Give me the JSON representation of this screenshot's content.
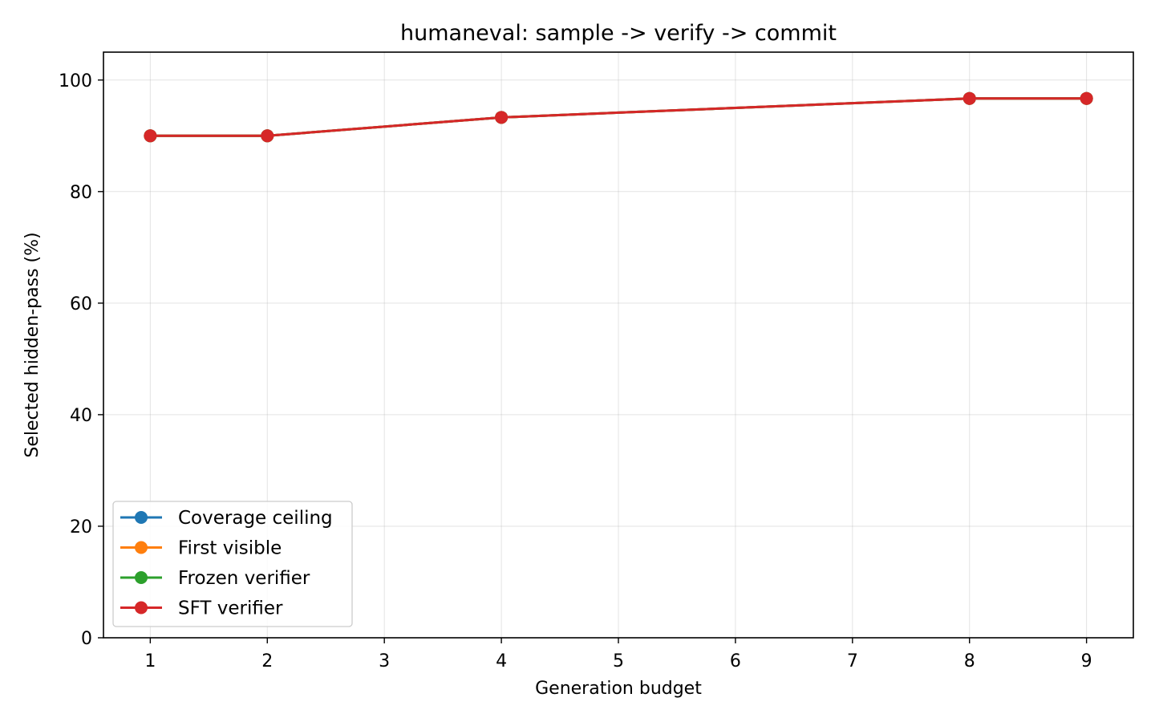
{
  "chart_data": {
    "type": "line",
    "title": "humaneval: sample -> verify -> commit",
    "xlabel": "Generation budget",
    "ylabel": "Selected hidden-pass (%)",
    "x_ticks": [
      1,
      2,
      3,
      4,
      5,
      6,
      7,
      8,
      9
    ],
    "y_ticks": [
      0,
      20,
      40,
      60,
      80,
      100
    ],
    "xlim": [
      0.6,
      9.4
    ],
    "ylim": [
      0,
      105
    ],
    "grid": true,
    "legend_position": "lower-left",
    "x": [
      1,
      2,
      4,
      8,
      9
    ],
    "series": [
      {
        "name": "Coverage ceiling",
        "color": "#1f77b4",
        "values": [
          90.0,
          90.0,
          93.3,
          96.7,
          96.7
        ]
      },
      {
        "name": "First visible",
        "color": "#ff7f0e",
        "values": [
          90.0,
          90.0,
          93.3,
          96.7,
          96.7
        ]
      },
      {
        "name": "Frozen verifier",
        "color": "#2ca02c",
        "values": [
          90.0,
          90.0,
          93.3,
          96.7,
          96.7
        ]
      },
      {
        "name": "SFT verifier",
        "color": "#d62728",
        "values": [
          90.0,
          90.0,
          93.3,
          96.7,
          96.7
        ]
      }
    ]
  }
}
